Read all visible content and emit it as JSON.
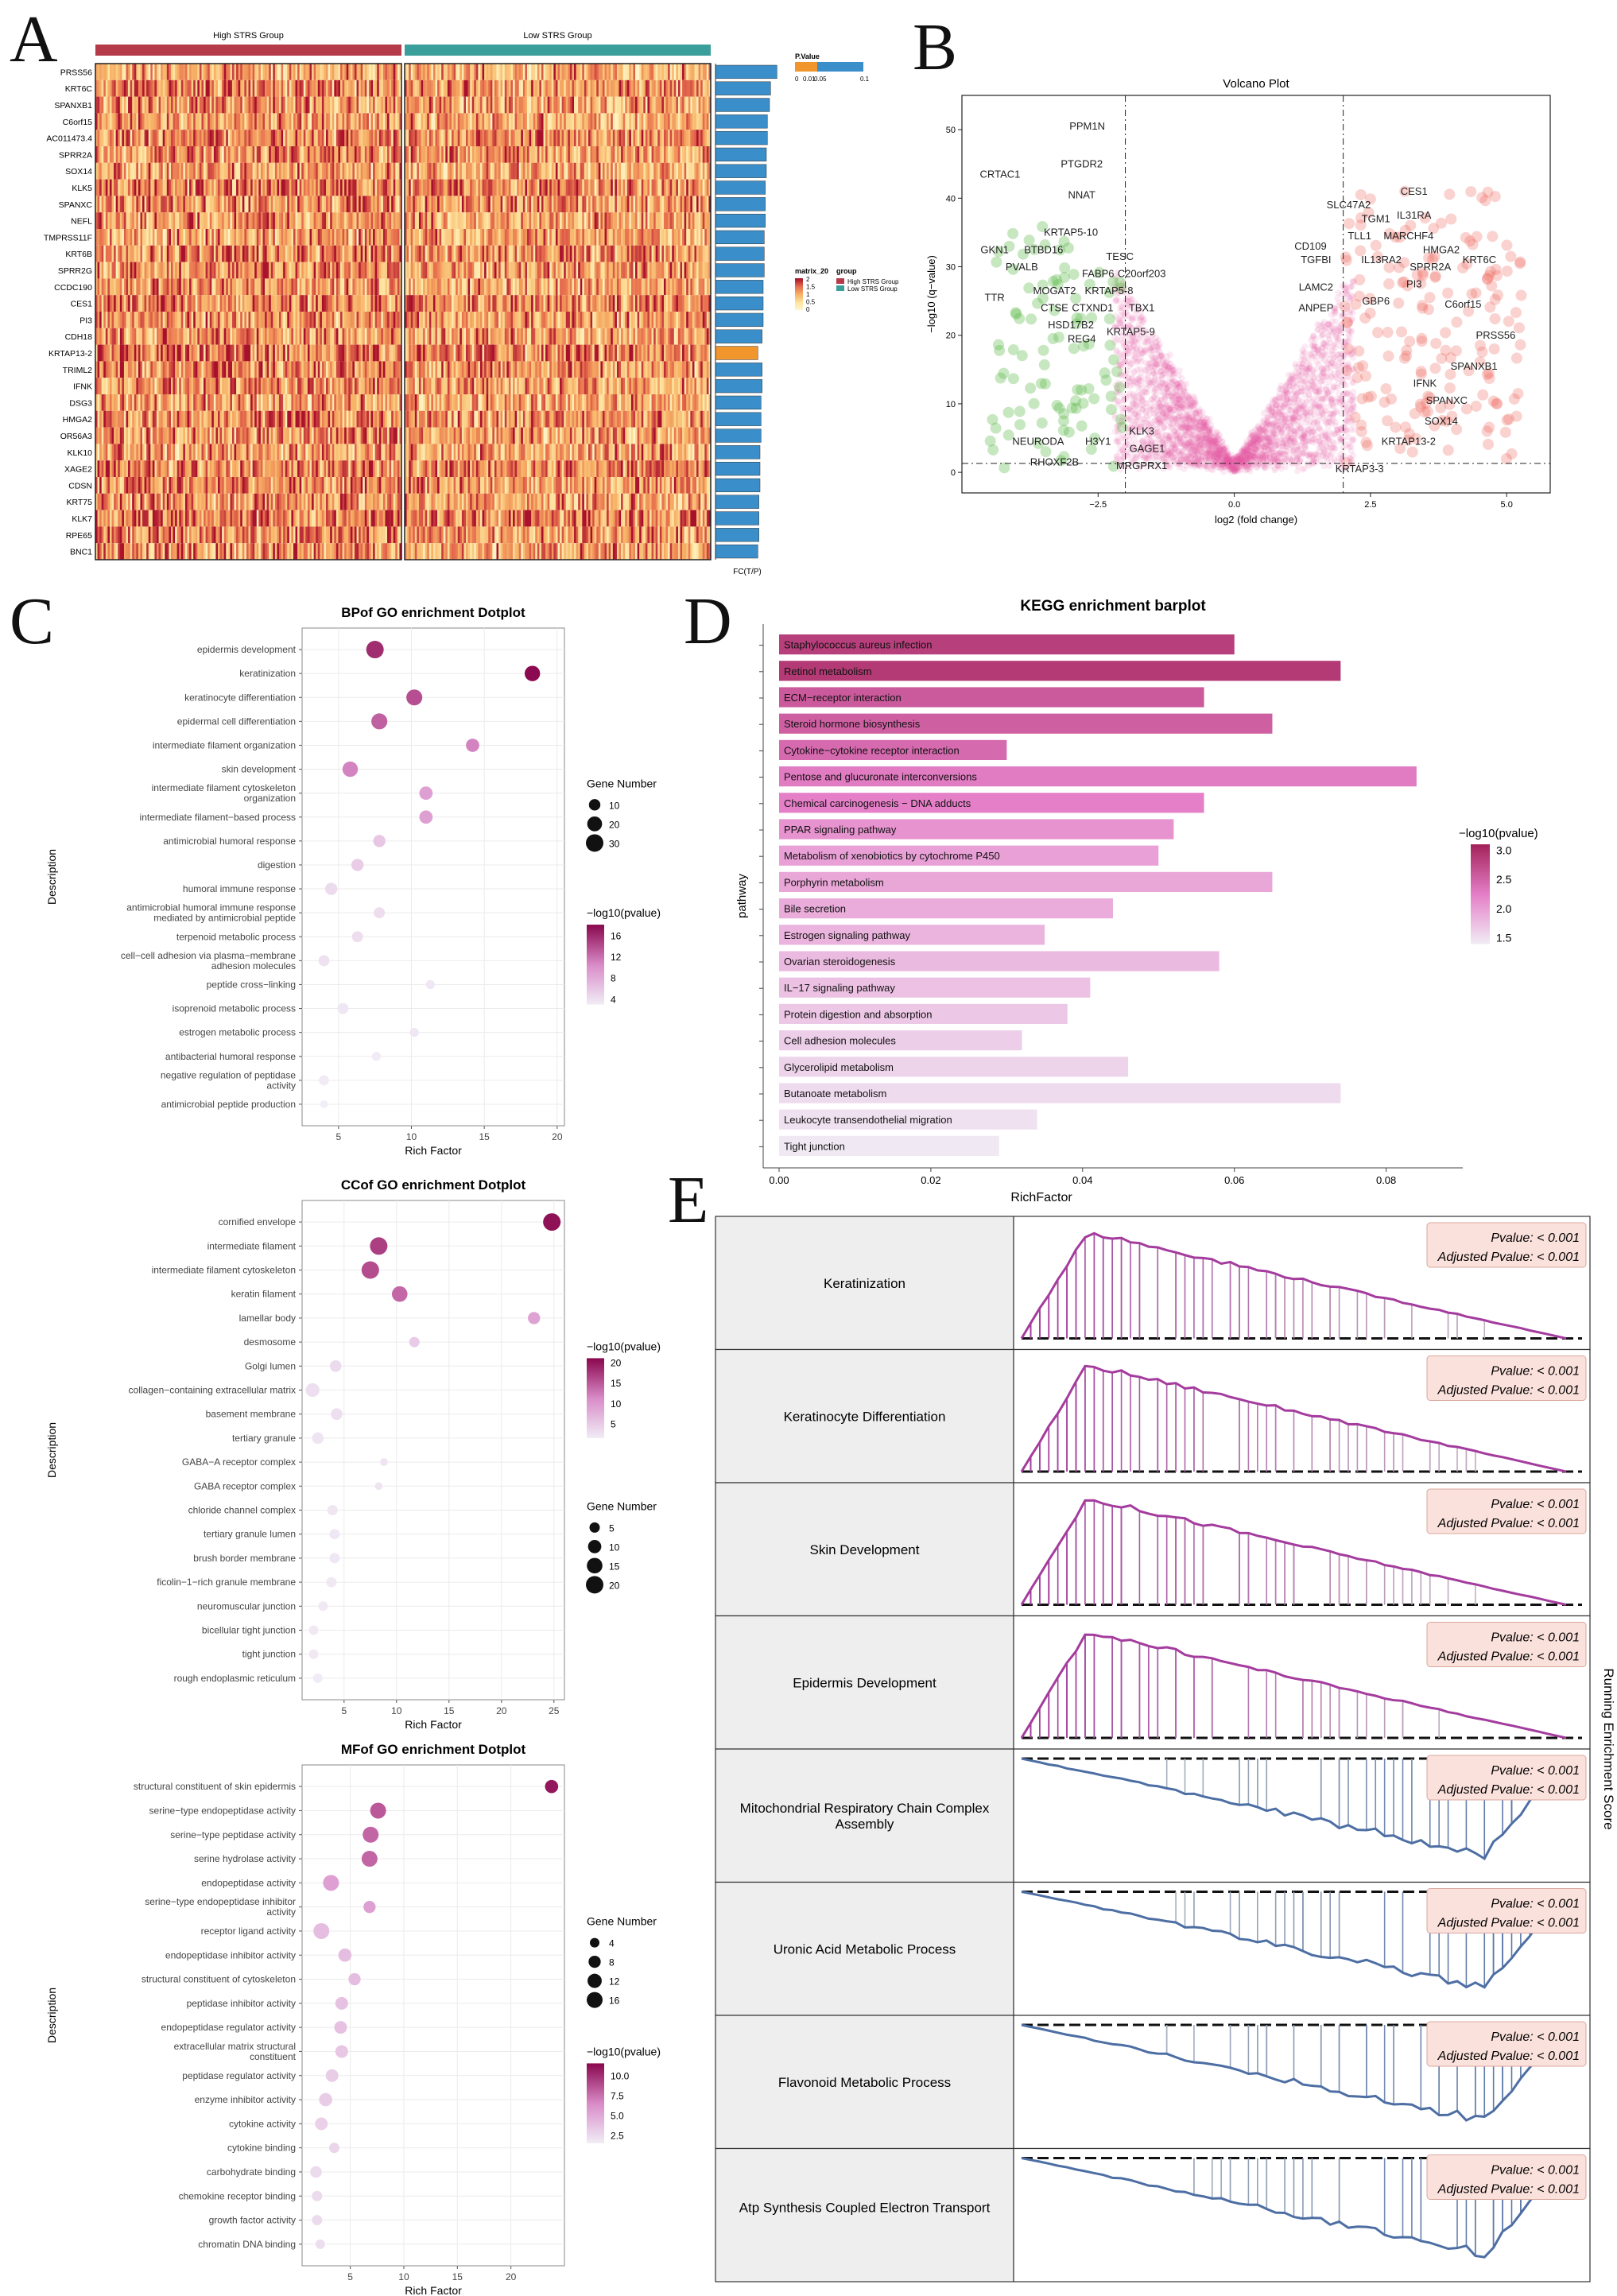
{
  "panel_labels": {
    "a": "A",
    "b": "B",
    "c": "C",
    "d": "D",
    "e": "E"
  },
  "heatmap": {
    "group_labels": [
      "High STRS Group",
      "Low STRS Group"
    ],
    "genes": [
      "PRSS56",
      "KRT6C",
      "SPANXB1",
      "C6orf15",
      "AC011473.4",
      "SPRR2A",
      "SOX14",
      "KLK5",
      "SPANXC",
      "NEFL",
      "TMPRSS11F",
      "KRT6B",
      "SPRR2G",
      "CCDC190",
      "CES1",
      "PI3",
      "CDH18",
      "KRTAP13-2",
      "TRIML2",
      "IFNK",
      "DSG3",
      "HMGA2",
      "OR56A3",
      "KLK10",
      "XAGE2",
      "CDSN",
      "KRT75",
      "KLK7",
      "RPE65",
      "BNC1"
    ],
    "fc_values": [
      2.9,
      2.6,
      2.55,
      2.45,
      2.45,
      2.4,
      2.4,
      2.35,
      2.35,
      2.35,
      2.3,
      2.3,
      2.3,
      2.25,
      2.25,
      2.25,
      2.2,
      2.0,
      2.2,
      2.2,
      2.15,
      2.15,
      2.15,
      2.1,
      2.1,
      2.1,
      2.05,
      2.05,
      2.05,
      2.0
    ],
    "fc_colors": [
      "#3a8ec9",
      "#3a8ec9",
      "#3a8ec9",
      "#3a8ec9",
      "#3a8ec9",
      "#3a8ec9",
      "#3a8ec9",
      "#3a8ec9",
      "#3a8ec9",
      "#3a8ec9",
      "#3a8ec9",
      "#3a8ec9",
      "#3a8ec9",
      "#3a8ec9",
      "#3a8ec9",
      "#3a8ec9",
      "#3a8ec9",
      "#f0962d",
      "#3a8ec9",
      "#3a8ec9",
      "#3a8ec9",
      "#3a8ec9",
      "#3a8ec9",
      "#3a8ec9",
      "#3a8ec9",
      "#3a8ec9",
      "#3a8ec9",
      "#3a8ec9",
      "#3a8ec9",
      "#3a8ec9"
    ],
    "fc_label": "FC(T/P)",
    "legend_pvalue_title": "P.Value",
    "legend_pvalue_ticks": [
      "0",
      "0.01",
      "0.05",
      "0.1"
    ],
    "legend_matrix_title": "matrix_20",
    "legend_matrix_ticks": [
      "2",
      "1.5",
      "1",
      "0.5",
      "0"
    ],
    "legend_group_title": "group",
    "legend_group_items": [
      "High STRS Group",
      "Low STRS Group"
    ],
    "high_color": "#b53a4a",
    "low_color": "#3a9e9a"
  },
  "volcano": {
    "title": "Volcano Plot",
    "xlabel": "log2 (fold change)",
    "ylabel": "−log10 (q−value)",
    "x_ticks": [
      -2.5,
      0.0,
      2.5,
      5.0
    ],
    "x_tick_labels": [
      "−2.5",
      "0.0",
      "2.5",
      "5.0"
    ],
    "y_ticks": [
      0,
      10,
      20,
      30,
      40,
      50
    ],
    "y_tick_labels": [
      "0",
      "10",
      "20",
      "30",
      "40",
      "50"
    ],
    "labels_left": [
      {
        "t": "PPM1N",
        "x": -2.7,
        "y": 50
      },
      {
        "t": "PTGDR2",
        "x": -2.8,
        "y": 44.5
      },
      {
        "t": "CRTAC1",
        "x": -4.3,
        "y": 43
      },
      {
        "t": "NNAT",
        "x": -2.8,
        "y": 40
      },
      {
        "t": "KRTAP5-10",
        "x": -3.0,
        "y": 34.5
      },
      {
        "t": "BTBD16",
        "x": -3.5,
        "y": 32
      },
      {
        "t": "TESC",
        "x": -2.1,
        "y": 31
      },
      {
        "t": "GKN1",
        "x": -4.4,
        "y": 32
      },
      {
        "t": "PVALB",
        "x": -3.9,
        "y": 29.5
      },
      {
        "t": "FABP6",
        "x": -2.5,
        "y": 28.5
      },
      {
        "t": "C20orf203",
        "x": -1.7,
        "y": 28.5
      },
      {
        "t": "MOGAT2",
        "x": -3.3,
        "y": 26
      },
      {
        "t": "KRTAP5-8",
        "x": -2.3,
        "y": 26
      },
      {
        "t": "TTR",
        "x": -4.4,
        "y": 25
      },
      {
        "t": "CTSE",
        "x": -3.3,
        "y": 23.5
      },
      {
        "t": "CTXND1",
        "x": -2.6,
        "y": 23.5
      },
      {
        "t": "TBX1",
        "x": -1.7,
        "y": 23.5
      },
      {
        "t": "HSD17B2",
        "x": -3.0,
        "y": 21
      },
      {
        "t": "KRTAP5-9",
        "x": -1.9,
        "y": 20
      },
      {
        "t": "REG4",
        "x": -2.8,
        "y": 19
      },
      {
        "t": "KLK3",
        "x": -1.7,
        "y": 5.5
      },
      {
        "t": "NEURODA",
        "x": -3.6,
        "y": 4
      },
      {
        "t": "H3Y1",
        "x": -2.5,
        "y": 4
      },
      {
        "t": "GAGE1",
        "x": -1.6,
        "y": 3
      },
      {
        "t": "RHOXF2B",
        "x": -3.3,
        "y": 1
      },
      {
        "t": "MRGPRX1",
        "x": -1.7,
        "y": 0.5
      }
    ],
    "labels_right": [
      {
        "t": "CES1",
        "x": 3.3,
        "y": 40.5
      },
      {
        "t": "SLC47A2",
        "x": 2.1,
        "y": 38.5
      },
      {
        "t": "TGM1",
        "x": 2.6,
        "y": 36.5
      },
      {
        "t": "IL31RA",
        "x": 3.3,
        "y": 37
      },
      {
        "t": "TLL1",
        "x": 2.3,
        "y": 34
      },
      {
        "t": "MARCHF4",
        "x": 3.2,
        "y": 34
      },
      {
        "t": "CD109",
        "x": 1.4,
        "y": 32.5
      },
      {
        "t": "IL13RA2",
        "x": 2.7,
        "y": 30.5
      },
      {
        "t": "HMGA2",
        "x": 3.8,
        "y": 32
      },
      {
        "t": "TGFBI",
        "x": 1.5,
        "y": 30.5
      },
      {
        "t": "SPRR2A",
        "x": 3.6,
        "y": 29.5
      },
      {
        "t": "KRT6C",
        "x": 4.5,
        "y": 30.5
      },
      {
        "t": "LAMC2",
        "x": 1.5,
        "y": 26.5
      },
      {
        "t": "PI3",
        "x": 3.3,
        "y": 27
      },
      {
        "t": "GBP6",
        "x": 2.6,
        "y": 24.5
      },
      {
        "t": "C6orf15",
        "x": 4.2,
        "y": 24
      },
      {
        "t": "ANPEP",
        "x": 1.5,
        "y": 23.5
      },
      {
        "t": "PRSS56",
        "x": 4.8,
        "y": 19.5
      },
      {
        "t": "SPANXB1",
        "x": 4.4,
        "y": 15
      },
      {
        "t": "IFNK",
        "x": 3.5,
        "y": 12.5
      },
      {
        "t": "SPANXC",
        "x": 3.9,
        "y": 10
      },
      {
        "t": "SOX14",
        "x": 3.8,
        "y": 7
      },
      {
        "t": "KRTAP13-2",
        "x": 3.2,
        "y": 4
      },
      {
        "t": "KRTAP3-3",
        "x": 2.3,
        "y": 0
      }
    ]
  },
  "bp": {
    "title": "BPof GO enrichment Dotplot",
    "xlabel": "Rich Factor",
    "ylabel": "Description",
    "x_ticks": [
      5,
      10,
      15,
      20
    ],
    "terms": [
      "epidermis development",
      "keratinization",
      "keratinocyte differentiation",
      "epidermal cell differentiation",
      "intermediate filament organization",
      "skin development",
      "intermediate filament cytoskeleton organization",
      "intermediate filament−based process",
      "antimicrobial humoral response",
      "digestion",
      "humoral immune response",
      "antimicrobial humoral immune response mediated by antimicrobial peptide",
      "terpenoid metabolic process",
      "cell−cell adhesion via plasma−membrane adhesion molecules",
      "peptide cross−linking",
      "isoprenoid metabolic process",
      "estrogen metabolic process",
      "antibacterial humoral response",
      "negative regulation of peptidase activity",
      "antimicrobial peptide production"
    ],
    "rich": [
      7.5,
      18.3,
      10.2,
      7.8,
      14.2,
      5.8,
      11.0,
      11.0,
      7.8,
      6.3,
      4.5,
      7.8,
      6.3,
      4.0,
      11.3,
      5.3,
      10.2,
      7.6,
      4.0,
      4.0
    ],
    "count": [
      30,
      22,
      24,
      24,
      15,
      22,
      15,
      15,
      12,
      12,
      12,
      9,
      9,
      9,
      5,
      9,
      5,
      5,
      7,
      3
    ],
    "pval": [
      16,
      18,
      14,
      13,
      11,
      11,
      9,
      9,
      6,
      5.5,
      4.5,
      4.3,
      4.3,
      4,
      3.5,
      3.5,
      3.5,
      3.2,
      3.2,
      3
    ],
    "size_title": "Gene Number",
    "size_ticks": [
      10,
      20,
      30
    ],
    "color_title": "−log10(pvalue)",
    "color_ticks": [
      16,
      12,
      8,
      4
    ],
    "color_range": [
      3,
      18
    ],
    "xlim": [
      2.5,
      20.5
    ]
  },
  "cc": {
    "title": "CCof GO enrichment Dotplot",
    "xlabel": "Rich Factor",
    "ylabel": "Description",
    "x_ticks": [
      5,
      10,
      15,
      20,
      25
    ],
    "terms": [
      "cornified envelope",
      "intermediate filament",
      "intermediate filament cytoskeleton",
      "keratin filament",
      "lamellar body",
      "desmosome",
      "Golgi lumen",
      "collagen−containing extracellular matrix",
      "basement membrane",
      "tertiary granule",
      "GABA−A receptor complex",
      "GABA receptor complex",
      "chloride channel complex",
      "tertiary granule lumen",
      "brush border membrane",
      "ficolin−1−rich granule membrane",
      "neuromuscular junction",
      "bicellular tight junction",
      "tight junction",
      "rough endoplasmic reticulum"
    ],
    "rich": [
      24.8,
      8.3,
      7.5,
      10.3,
      23.1,
      11.7,
      4.2,
      2.0,
      4.3,
      2.5,
      8.8,
      8.3,
      3.9,
      4.1,
      4.1,
      3.8,
      3.0,
      2.1,
      2.1,
      2.5
    ],
    "count": [
      20,
      20,
      20,
      15,
      8,
      5,
      7,
      11,
      7,
      7,
      2,
      2,
      5,
      5,
      5,
      5,
      4,
      4,
      4,
      4
    ],
    "pval": [
      20.5,
      17,
      16,
      14,
      9,
      5,
      3.5,
      3,
      3,
      2.5,
      2.5,
      2.5,
      2.3,
      2.2,
      2.2,
      2.1,
      2,
      2,
      2,
      1.8
    ],
    "size_title": "Gene Number",
    "size_ticks": [
      5,
      10,
      15,
      20
    ],
    "color_title": "−log10(pvalue)",
    "color_ticks": [
      20,
      15,
      10,
      5
    ],
    "color_range": [
      1.5,
      21
    ],
    "xlim": [
      1,
      26
    ]
  },
  "mf": {
    "title": "MFof GO enrichment Dotplot",
    "xlabel": "Rich Factor",
    "ylabel": "Description",
    "x_ticks": [
      5,
      10,
      15,
      20
    ],
    "terms": [
      "structural constituent of skin epidermis",
      "serine−type endopeptidase activity",
      "serine−type peptidase activity",
      "serine hydrolase activity",
      "endopeptidase activity",
      "serine−type endopeptidase inhibitor activity",
      "receptor ligand activity",
      "endopeptidase inhibitor activity",
      "structural constituent of cytoskeleton",
      "peptidase inhibitor activity",
      "endopeptidase regulator activity",
      "extracellular matrix structural constituent",
      "peptidase regulator activity",
      "enzyme inhibitor activity",
      "cytokine activity",
      "cytokine binding",
      "carbohydrate binding",
      "chemokine receptor binding",
      "growth factor activity",
      "chromatin DNA binding"
    ],
    "rich": [
      23.8,
      7.6,
      6.9,
      6.8,
      3.2,
      6.8,
      2.3,
      4.5,
      5.4,
      4.2,
      4.1,
      4.2,
      3.3,
      2.7,
      2.3,
      3.5,
      1.8,
      1.9,
      1.9,
      2.2
    ],
    "count": [
      10,
      16,
      16,
      16,
      16,
      8,
      16,
      10,
      8,
      9,
      9,
      9,
      9,
      10,
      9,
      5,
      7,
      5,
      5,
      4
    ],
    "pval": [
      11,
      8.5,
      8,
      8,
      5.5,
      5.5,
      4,
      4,
      4,
      3.8,
      3.8,
      3.5,
      3.2,
      3.2,
      3,
      2.8,
      2.5,
      2.5,
      2.5,
      2.3
    ],
    "size_title": "Gene Number",
    "size_ticks": [
      4,
      8,
      12,
      16
    ],
    "color_title": "−log10(pvalue)",
    "color_ticks": [
      10.0,
      7.5,
      5.0,
      2.5
    ],
    "color_tick_labels": [
      "10.0",
      "7.5",
      "5.0",
      "2.5"
    ],
    "color_range": [
      1.5,
      11.5
    ],
    "xlim": [
      0.5,
      25
    ]
  },
  "kegg": {
    "title": "KEGG enrichment barplot",
    "xlabel": "RichFactor",
    "ylabel": "pathway",
    "x_ticks": [
      0.0,
      0.02,
      0.04,
      0.06,
      0.08
    ],
    "x_tick_labels": [
      "0.00",
      "0.02",
      "0.04",
      "0.06",
      "0.08"
    ],
    "pathways": [
      "Staphylococcus aureus infection",
      "Retinol metabolism",
      "ECM−receptor interaction",
      "Steroid hormone biosynthesis",
      "Cytokine−cytokine receptor interaction",
      "Pentose and glucuronate interconversions",
      "Chemical carcinogenesis − DNA adducts",
      "PPAR signaling pathway",
      "Metabolism of xenobiotics by cytochrome P450",
      "Porphyrin metabolism",
      "Bile secretion",
      "Estrogen signaling pathway",
      "Ovarian steroidogenesis",
      "IL−17 signaling pathway",
      "Protein digestion and absorption",
      "Cell adhesion molecules",
      "Glycerolipid metabolism",
      "Butanoate metabolism",
      "Leukocyte transendothelial migration",
      "Tight junction"
    ],
    "values": [
      0.06,
      0.074,
      0.056,
      0.065,
      0.03,
      0.084,
      0.056,
      0.052,
      0.05,
      0.065,
      0.044,
      0.035,
      0.058,
      0.041,
      0.038,
      0.032,
      0.046,
      0.074,
      0.034,
      0.029
    ],
    "pval": [
      2.85,
      2.9,
      2.6,
      2.55,
      2.45,
      2.3,
      2.25,
      2.1,
      2.0,
      1.95,
      1.9,
      1.85,
      1.8,
      1.75,
      1.7,
      1.65,
      1.6,
      1.55,
      1.5,
      1.45
    ],
    "color_title": "−log10(pvalue)",
    "color_ticks": [
      3.0,
      2.5,
      2.0,
      1.5
    ],
    "color_tick_labels": [
      "3.0",
      "2.5",
      "2.0",
      "1.5"
    ],
    "color_range": [
      1.4,
      3.1
    ]
  },
  "gsea": {
    "side_label": "Running Enrichment Score",
    "pvalue_text": "Pvalue: < 0.001",
    "adj_pvalue_text": "Adjusted Pvalue: < 0.001",
    "pathways": [
      {
        "name": "Keratinization",
        "dir": "up"
      },
      {
        "name": "Keratinocyte Differentiation",
        "dir": "up"
      },
      {
        "name": "Skin Development",
        "dir": "up"
      },
      {
        "name": "Epidermis Development",
        "dir": "up"
      },
      {
        "name": "Mitochondrial Respiratory Chain Complex Assembly",
        "dir": "down"
      },
      {
        "name": "Uronic Acid Metabolic Process",
        "dir": "down"
      },
      {
        "name": "Flavonoid Metabolic Process",
        "dir": "down"
      },
      {
        "name": "Atp Synthesis Coupled Electron Transport",
        "dir": "down"
      }
    ],
    "up_color": "#a43c9e",
    "down_color": "#4d6ea3"
  }
}
